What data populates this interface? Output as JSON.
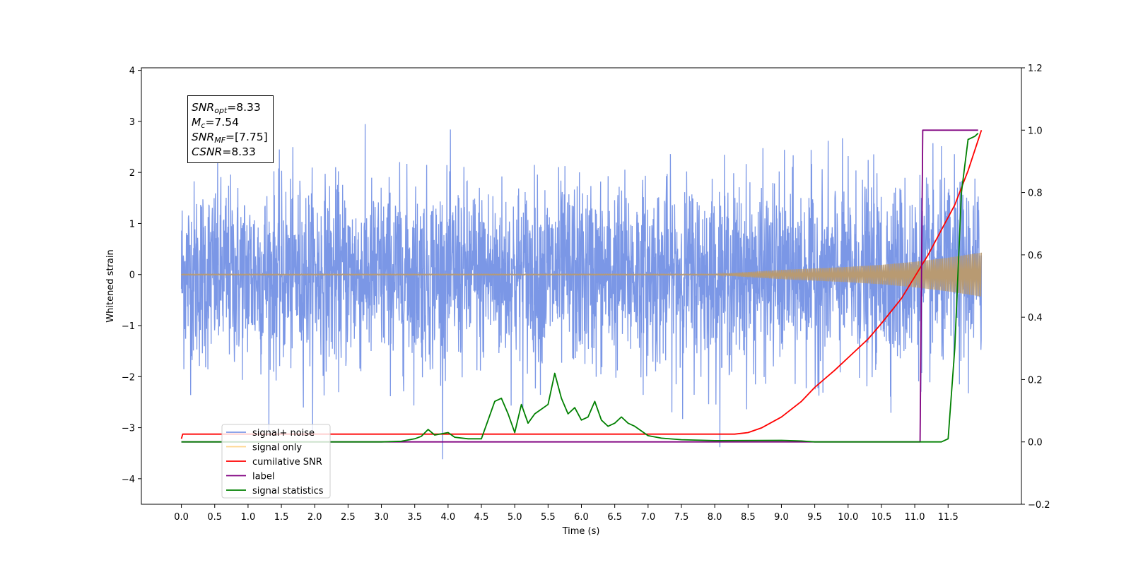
{
  "chart_data": {
    "type": "line",
    "xlabel": "Time (s)",
    "ylabel": "Whitened strain",
    "x_ticks": [
      "0.0",
      "0.5",
      "1.0",
      "1.5",
      "2.0",
      "2.5",
      "3.0",
      "3.5",
      "4.0",
      "4.5",
      "5.0",
      "5.5",
      "6.0",
      "6.5",
      "7.0",
      "7.5",
      "8.0",
      "8.5",
      "9.0",
      "9.5",
      "10.0",
      "10.5",
      "11.0",
      "11.5"
    ],
    "y_ticks_left": [
      "4",
      "3",
      "2",
      "1",
      "0",
      "−1",
      "−2",
      "−3",
      "−4"
    ],
    "y_ticks_right": [
      "1.2",
      "1.0",
      "0.8",
      "0.6",
      "0.4",
      "0.2",
      "0.0",
      "−0.2"
    ],
    "xlim": [
      -0.6,
      12.6
    ],
    "ylim_left": [
      -4.5,
      4.05
    ],
    "ylim_right": [
      -0.2,
      1.2
    ],
    "annotation": {
      "snr_opt": {
        "base": "SNR",
        "sub": "opt",
        "value": "=8.33"
      },
      "mc": {
        "base": "M",
        "sub": "c",
        "value": "=7.54"
      },
      "snr_mf": {
        "base": "SNR",
        "sub": "MF",
        "value": "=[7.75]"
      },
      "csnr": {
        "base": "CSNR",
        "value": "=8.33"
      }
    },
    "legend": {
      "placement": "lower-left",
      "entries": [
        {
          "label": "signal+ noise",
          "color": "#7b97e6"
        },
        {
          "label": "signal only",
          "color": "#ffd58a"
        },
        {
          "label": "cumilative SNR",
          "color": "#ff0000"
        },
        {
          "label": "label",
          "color": "#800080"
        },
        {
          "label": "signal statistics",
          "color": "#008000"
        }
      ]
    },
    "series": [
      {
        "name": "signal+ noise",
        "axis": "left",
        "color": "#7b97e6",
        "kind": "noise",
        "amplitude_sd": 0.9,
        "duration": 12.0
      },
      {
        "name": "signal only",
        "axis": "left",
        "color": "#b89a72",
        "kind": "envelope",
        "envelope": [
          [
            0,
            0.01
          ],
          [
            8.0,
            0.01
          ],
          [
            8.5,
            0.05
          ],
          [
            9.0,
            0.09
          ],
          [
            9.5,
            0.12
          ],
          [
            10.0,
            0.15
          ],
          [
            10.5,
            0.19
          ],
          [
            11.0,
            0.25
          ],
          [
            11.5,
            0.33
          ],
          [
            12.0,
            0.43
          ]
        ]
      },
      {
        "name": "cumilative SNR",
        "axis": "right",
        "color": "#ff0000",
        "points": [
          [
            0,
            0.01
          ],
          [
            0.02,
            0.025
          ],
          [
            8.3,
            0.025
          ],
          [
            8.5,
            0.03
          ],
          [
            8.7,
            0.045
          ],
          [
            9.0,
            0.08
          ],
          [
            9.3,
            0.13
          ],
          [
            9.5,
            0.175
          ],
          [
            9.8,
            0.23
          ],
          [
            10.0,
            0.27
          ],
          [
            10.3,
            0.33
          ],
          [
            10.5,
            0.38
          ],
          [
            10.8,
            0.46
          ],
          [
            11.0,
            0.53
          ],
          [
            11.2,
            0.6
          ],
          [
            11.4,
            0.68
          ],
          [
            11.6,
            0.76
          ],
          [
            11.8,
            0.87
          ],
          [
            12.0,
            1.0
          ]
        ]
      },
      {
        "name": "label",
        "axis": "right",
        "color": "#800080",
        "points": [
          [
            0,
            0.0
          ],
          [
            11.08,
            0.0
          ],
          [
            11.12,
            1.0
          ],
          [
            11.95,
            1.0
          ]
        ]
      },
      {
        "name": "signal statistics",
        "axis": "right",
        "color": "#008000",
        "points": [
          [
            0,
            0.0
          ],
          [
            3.0,
            0.0
          ],
          [
            3.3,
            0.002
          ],
          [
            3.5,
            0.01
          ],
          [
            3.6,
            0.018
          ],
          [
            3.7,
            0.04
          ],
          [
            3.8,
            0.022
          ],
          [
            4.0,
            0.03
          ],
          [
            4.1,
            0.015
          ],
          [
            4.3,
            0.01
          ],
          [
            4.5,
            0.01
          ],
          [
            4.6,
            0.07
          ],
          [
            4.7,
            0.13
          ],
          [
            4.8,
            0.14
          ],
          [
            4.9,
            0.09
          ],
          [
            5.0,
            0.03
          ],
          [
            5.1,
            0.12
          ],
          [
            5.2,
            0.06
          ],
          [
            5.3,
            0.09
          ],
          [
            5.5,
            0.12
          ],
          [
            5.6,
            0.22
          ],
          [
            5.7,
            0.14
          ],
          [
            5.8,
            0.09
          ],
          [
            5.9,
            0.11
          ],
          [
            6.0,
            0.07
          ],
          [
            6.1,
            0.08
          ],
          [
            6.2,
            0.13
          ],
          [
            6.3,
            0.07
          ],
          [
            6.4,
            0.05
          ],
          [
            6.5,
            0.06
          ],
          [
            6.6,
            0.08
          ],
          [
            6.7,
            0.06
          ],
          [
            6.8,
            0.05
          ],
          [
            7.0,
            0.02
          ],
          [
            7.2,
            0.012
          ],
          [
            7.5,
            0.007
          ],
          [
            8.0,
            0.004
          ],
          [
            9.0,
            0.005
          ],
          [
            9.3,
            0.003
          ],
          [
            9.5,
            0.0
          ],
          [
            11.4,
            0.0
          ],
          [
            11.5,
            0.01
          ],
          [
            11.6,
            0.3
          ],
          [
            11.7,
            0.8
          ],
          [
            11.8,
            0.97
          ],
          [
            11.9,
            0.98
          ],
          [
            11.95,
            0.99
          ]
        ]
      }
    ]
  }
}
